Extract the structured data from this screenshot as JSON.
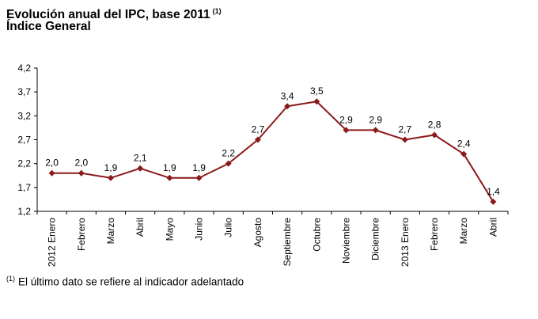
{
  "chart_data": {
    "type": "line",
    "title": "Evolución anual del IPC, base 2011",
    "title_note": "(1)",
    "subtitle": "Índice General",
    "footnote_marker": "(1)",
    "footnote": "El último dato se refiere al indicador adelantado",
    "categories": [
      "2012 Enero",
      "Febrero",
      "Marzo",
      "Abril",
      "Mayo",
      "Junio",
      "Julio",
      "Agosto",
      "Septiembre",
      "Octubre",
      "Noviembre",
      "Diciembre",
      "2013 Enero",
      "Febrero",
      "Marzo",
      "Abril"
    ],
    "values": [
      2.0,
      2.0,
      1.9,
      2.1,
      1.9,
      1.9,
      2.2,
      2.7,
      3.4,
      3.5,
      2.9,
      2.9,
      2.7,
      2.8,
      2.4,
      1.4
    ],
    "data_labels": [
      "2,0",
      "2,0",
      "1,9",
      "2,1",
      "1,9",
      "1,9",
      "2,2",
      "2,7",
      "3,4",
      "3,5",
      "2,9",
      "2,9",
      "2,7",
      "2,8",
      "2,4",
      "1,4"
    ],
    "yticks": [
      1.2,
      1.7,
      2.2,
      2.7,
      3.2,
      3.7,
      4.2
    ],
    "ytick_labels": [
      "1,2",
      "1,7",
      "2,2",
      "2,7",
      "3,2",
      "3,7",
      "4,2"
    ],
    "ylim": [
      1.2,
      4.2
    ],
    "xlabel": "",
    "ylabel": "",
    "grid": false,
    "legend": "none",
    "series_color": "#8b1a1a"
  }
}
